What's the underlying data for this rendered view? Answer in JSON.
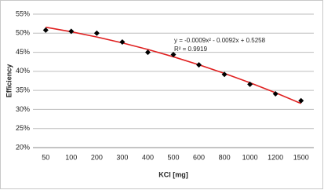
{
  "chart_data": {
    "type": "scatter",
    "x_label": "KCl [mg]",
    "y_label": "Efficiency",
    "categories": [
      "50",
      "100",
      "200",
      "300",
      "400",
      "500",
      "600",
      "800",
      "1000",
      "1200",
      "1500"
    ],
    "series": [
      {
        "color": "#000000",
        "values": [
          50.8,
          50.5,
          50.0,
          47.7,
          45.0,
          44.4,
          41.7,
          39.2,
          36.6,
          34.1,
          32.3
        ]
      }
    ],
    "trendline": {
      "color": "#e02020",
      "values": [
        51.57,
        50.38,
        49.01,
        47.46,
        45.73,
        43.82,
        41.73,
        39.46,
        37.01,
        34.38,
        31.57
      ],
      "equation": "y = -0.0009x² - 0.0092x + 0.5258",
      "r_squared": "R² = 0.9919"
    },
    "ylim": [
      20,
      55
    ],
    "yticks": [
      {
        "value": 20,
        "label": "20%"
      },
      {
        "value": 25,
        "label": "25%"
      },
      {
        "value": 30,
        "label": "30%"
      },
      {
        "value": 35,
        "label": "35%"
      },
      {
        "value": 40,
        "label": "40%"
      },
      {
        "value": 45,
        "label": "45%"
      },
      {
        "value": 50,
        "label": "50%"
      },
      {
        "value": 55,
        "label": "55%"
      }
    ],
    "grid": true
  }
}
